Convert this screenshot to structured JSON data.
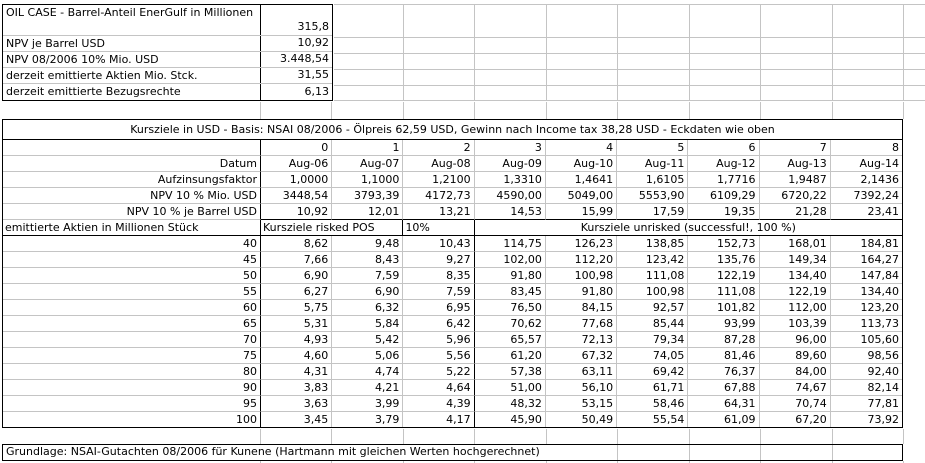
{
  "top_block": {
    "rows": [
      {
        "label": "OIL CASE - Barrel-Anteil EnerGulf in Millionen",
        "value": "315,8"
      },
      {
        "label": "NPV je Barrel USD",
        "value": "10,92"
      },
      {
        "label": "NPV 08/2006 10% Mio. USD",
        "value": "3.448,54"
      },
      {
        "label": "derzeit emittierte Aktien Mio. Stck.",
        "value": "31,55"
      },
      {
        "label": "derzeit emittierte Bezugsrechte",
        "value": "6,13"
      }
    ]
  },
  "main_table": {
    "title": "Kursziele in USD - Basis: NSAI 08/2006 - Ölpreis 62,59 USD, Gewinn nach Income tax 38,28 USD - Eckdaten wie oben",
    "column_index_row": [
      "0",
      "1",
      "2",
      "3",
      "4",
      "5",
      "6",
      "7",
      "8"
    ],
    "param_rows": [
      {
        "label": "Datum",
        "values": [
          "Aug-06",
          "Aug-07",
          "Aug-08",
          "Aug-09",
          "Aug-10",
          "Aug-11",
          "Aug-12",
          "Aug-13",
          "Aug-14"
        ]
      },
      {
        "label": "Aufzinsungsfaktor",
        "values": [
          "1,0000",
          "1,1000",
          "1,2100",
          "1,3310",
          "1,4641",
          "1,6105",
          "1,7716",
          "1,9487",
          "2,1436"
        ]
      },
      {
        "label": "NPV 10 % Mio. USD",
        "values": [
          "3448,54",
          "3793,39",
          "4172,73",
          "4590,00",
          "5049,00",
          "5553,90",
          "6109,29",
          "6720,22",
          "7392,24"
        ]
      },
      {
        "label": "NPV 10 % je Barrel USD",
        "values": [
          "10,92",
          "12,01",
          "13,21",
          "14,53",
          "15,99",
          "17,59",
          "19,35",
          "21,28",
          "23,41"
        ]
      }
    ],
    "section_row": {
      "label": "emittierte Aktien in Millionen Stück",
      "risked_label": "Kursziele risked POS",
      "risked_pct": "10%",
      "unrisked_label": "Kursziele unrisked (successful!, 100 %)"
    },
    "data_rows": [
      {
        "shares": "40",
        "values": [
          "8,62",
          "9,48",
          "10,43",
          "114,75",
          "126,23",
          "138,85",
          "152,73",
          "168,01",
          "184,81"
        ]
      },
      {
        "shares": "45",
        "values": [
          "7,66",
          "8,43",
          "9,27",
          "102,00",
          "112,20",
          "123,42",
          "135,76",
          "149,34",
          "164,27"
        ]
      },
      {
        "shares": "50",
        "values": [
          "6,90",
          "7,59",
          "8,35",
          "91,80",
          "100,98",
          "111,08",
          "122,19",
          "134,40",
          "147,84"
        ]
      },
      {
        "shares": "55",
        "values": [
          "6,27",
          "6,90",
          "7,59",
          "83,45",
          "91,80",
          "100,98",
          "111,08",
          "122,19",
          "134,40"
        ]
      },
      {
        "shares": "60",
        "values": [
          "5,75",
          "6,32",
          "6,95",
          "76,50",
          "84,15",
          "92,57",
          "101,82",
          "112,00",
          "123,20"
        ]
      },
      {
        "shares": "65",
        "values": [
          "5,31",
          "5,84",
          "6,42",
          "70,62",
          "77,68",
          "85,44",
          "93,99",
          "103,39",
          "113,73"
        ]
      },
      {
        "shares": "70",
        "values": [
          "4,93",
          "5,42",
          "5,96",
          "65,57",
          "72,13",
          "79,34",
          "87,28",
          "96,00",
          "105,60"
        ]
      },
      {
        "shares": "75",
        "values": [
          "4,60",
          "5,06",
          "5,56",
          "61,20",
          "67,32",
          "74,05",
          "81,46",
          "89,60",
          "98,56"
        ]
      },
      {
        "shares": "80",
        "values": [
          "4,31",
          "4,74",
          "5,22",
          "57,38",
          "63,11",
          "69,42",
          "76,37",
          "84,00",
          "92,40"
        ]
      },
      {
        "shares": "90",
        "values": [
          "3,83",
          "4,21",
          "4,64",
          "51,00",
          "56,10",
          "61,71",
          "67,88",
          "74,67",
          "82,14"
        ]
      },
      {
        "shares": "95",
        "values": [
          "3,63",
          "3,99",
          "4,39",
          "48,32",
          "53,15",
          "58,46",
          "64,31",
          "70,74",
          "77,81"
        ]
      },
      {
        "shares": "100",
        "values": [
          "3,45",
          "3,79",
          "4,17",
          "45,90",
          "50,49",
          "55,54",
          "61,09",
          "67,20",
          "73,92"
        ]
      }
    ]
  },
  "footer": {
    "text": "Grundlage: NSAI-Gutachten 08/2006 für Kunene (Hartmann mit gleichen Werten hochgerechnet)"
  },
  "colors": {
    "grid_line": "#c4c4c4",
    "border": "#000000",
    "background": "#ffffff"
  }
}
